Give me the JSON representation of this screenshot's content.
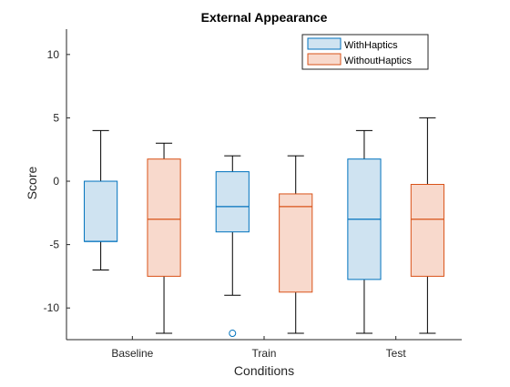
{
  "chart_data": {
    "type": "box",
    "title": "External Appearance",
    "xlabel": "Conditions",
    "ylabel": "Score",
    "ylim": [
      -12.5,
      12
    ],
    "yticks": [
      -10,
      -5,
      0,
      5,
      10
    ],
    "categories": [
      "Baseline",
      "Train",
      "Test"
    ],
    "legend": {
      "placement": "top-right"
    },
    "series": [
      {
        "name": "WithHaptics",
        "edge_color": "#0072BD",
        "fill_color": "#CFE3F1",
        "boxes": [
          {
            "whisker_low": -7,
            "q1": -4.75,
            "median": -4.75,
            "q3": 0,
            "whisker_high": 4,
            "outliers": []
          },
          {
            "whisker_low": -9,
            "q1": -4,
            "median": -2,
            "q3": 0.75,
            "whisker_high": 2,
            "outliers": [
              -12
            ]
          },
          {
            "whisker_low": -12,
            "q1": -7.75,
            "median": -3,
            "q3": 1.75,
            "whisker_high": 4,
            "outliers": []
          }
        ]
      },
      {
        "name": "WithoutHaptics",
        "edge_color": "#D95319",
        "fill_color": "#F8D9CC",
        "boxes": [
          {
            "whisker_low": -12,
            "q1": -7.5,
            "median": -3,
            "q3": 1.75,
            "whisker_high": 3,
            "outliers": []
          },
          {
            "whisker_low": -12,
            "q1": -8.75,
            "median": -2,
            "q3": -1,
            "whisker_high": 2,
            "outliers": []
          },
          {
            "whisker_low": -12,
            "q1": -7.5,
            "median": -3,
            "q3": -0.25,
            "whisker_high": 5,
            "outliers": []
          }
        ]
      }
    ]
  }
}
